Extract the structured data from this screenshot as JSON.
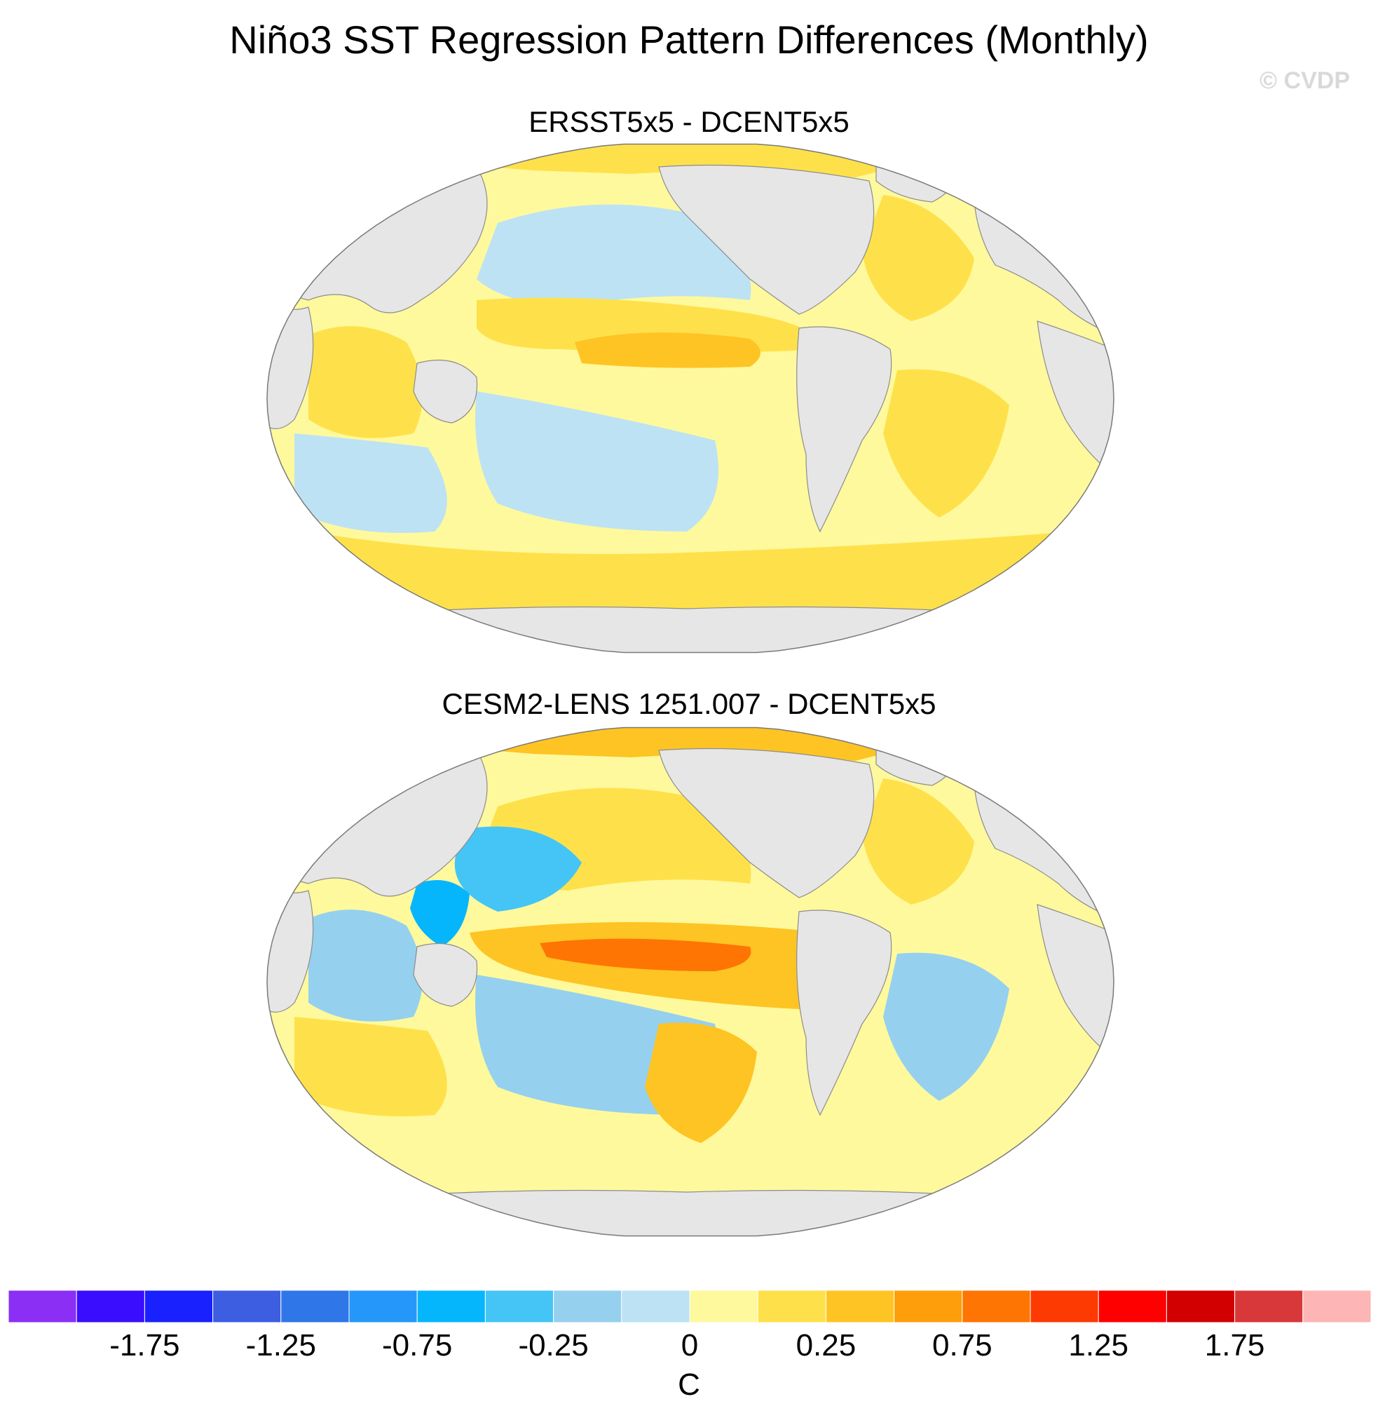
{
  "title": "Niño3 SST Regression Pattern Differences (Monthly)",
  "copyright": "© CVDP",
  "colors": {
    "land": "#e6e6e6",
    "coast": "#8c8c8c",
    "no_data": "#e6e6e6"
  },
  "chart_data": [
    {
      "type": "heatmap",
      "title": "ERSST5x5 - DCENT5x5",
      "projection": "robinson",
      "units": "C",
      "regions": [
        {
          "name": "north-pacific",
          "value": -0.1
        },
        {
          "name": "tropical-pacific-north",
          "value": 0.1
        },
        {
          "name": "central-equatorial-pacific",
          "value": 0.3
        },
        {
          "name": "south-pacific",
          "value": -0.1
        },
        {
          "name": "southern-ocean",
          "value": 0.1
        },
        {
          "name": "indian-ocean",
          "value": 0.1
        },
        {
          "name": "south-indian-ocean",
          "value": -0.1
        },
        {
          "name": "north-atlantic",
          "value": 0.1
        },
        {
          "name": "south-atlantic",
          "value": 0.1
        },
        {
          "name": "arctic",
          "value": 0.2
        }
      ]
    },
    {
      "type": "heatmap",
      "title": "CESM2-LENS 1251.007 - DCENT5x5",
      "projection": "robinson",
      "units": "C",
      "regions": [
        {
          "name": "north-pacific",
          "value": 0.1
        },
        {
          "name": "western-pacific",
          "value": -0.3
        },
        {
          "name": "maritime-continent",
          "value": -0.6
        },
        {
          "name": "equatorial-pacific",
          "value": 0.4
        },
        {
          "name": "east-equatorial-pacific",
          "value": 0.85
        },
        {
          "name": "south-pacific",
          "value": -0.2
        },
        {
          "name": "southeast-pacific",
          "value": 0.3
        },
        {
          "name": "indian-ocean",
          "value": -0.2
        },
        {
          "name": "south-indian-ocean",
          "value": 0.2
        },
        {
          "name": "north-atlantic",
          "value": 0.2
        },
        {
          "name": "south-atlantic",
          "value": -0.2
        },
        {
          "name": "arctic",
          "value": 0.3
        }
      ]
    }
  ],
  "colorbar": {
    "levels": [
      -2,
      -1.75,
      -1.5,
      -1.25,
      -1,
      -0.75,
      -0.5,
      -0.25,
      -0.1,
      0,
      0.1,
      0.25,
      0.5,
      0.75,
      1,
      1.25,
      1.5,
      1.75,
      2
    ],
    "colors": [
      "#8b2ff5",
      "#3a0dff",
      "#1a21ff",
      "#3d5ee0",
      "#2f77e8",
      "#2597fb",
      "#05b6fd",
      "#45c5f5",
      "#95d1ee",
      "#bde2f4",
      "#fff99d",
      "#fee14a",
      "#fec423",
      "#fe9e0a",
      "#fe7503",
      "#fe3a03",
      "#ff0000",
      "#d20000",
      "#d8383a",
      "#fdb5b5"
    ],
    "tick_labels": [
      "-1.75",
      "-1.25",
      "-0.75",
      "-0.25",
      "0",
      "0.25",
      "0.75",
      "1.25",
      "1.75"
    ],
    "unit_label": "C"
  }
}
